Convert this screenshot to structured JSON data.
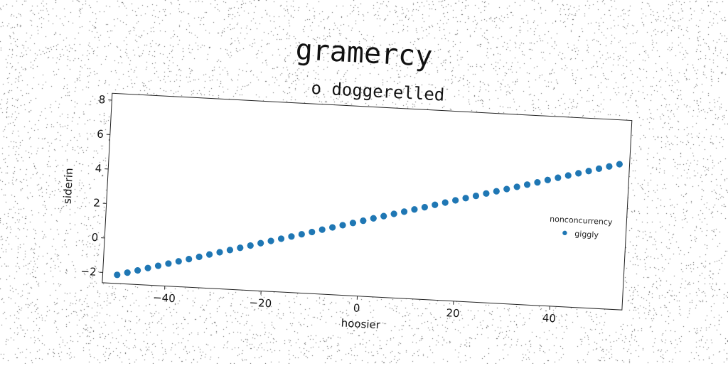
{
  "figure": {
    "suptitle": "gramercy",
    "title": "o doggerelled"
  },
  "chart_data": {
    "type": "scatter",
    "title": "o doggerelled",
    "suptitle": "gramercy",
    "xlabel": "hoosier",
    "ylabel": "siderin",
    "xlim": [
      -53,
      55
    ],
    "ylim": [
      -2.6,
      8.4
    ],
    "xticks": [
      -40,
      -20,
      0,
      20,
      40
    ],
    "xtick_labels": [
      "−40",
      "−20",
      "0",
      "20",
      "40"
    ],
    "yticks": [
      -2,
      0,
      2,
      4,
      6,
      8
    ],
    "ytick_labels": [
      "−2",
      "0",
      "2",
      "4",
      "6",
      "8"
    ],
    "grid": false,
    "legend": {
      "title": "nonconcurrency",
      "placement": "right"
    },
    "series": [
      {
        "name": "giggly",
        "color": "#1f77b4",
        "x_start": -50,
        "x_end": 53,
        "points": 50,
        "x": [
          -50,
          -47.9,
          -45.8,
          -43.7,
          -41.6,
          -39.5,
          -37.4,
          -35.3,
          -33.2,
          -31.1,
          -29.0,
          -26.9,
          -24.8,
          -22.7,
          -20.6,
          -18.5,
          -16.4,
          -14.3,
          -12.2,
          -10.1,
          -8.0,
          -5.9,
          -3.8,
          -1.7,
          0.4,
          2.5,
          4.6,
          6.7,
          8.8,
          10.9,
          13.0,
          15.1,
          17.2,
          19.3,
          21.4,
          23.5,
          25.6,
          27.7,
          29.8,
          31.9,
          34.0,
          36.1,
          38.2,
          40.3,
          42.4,
          44.5,
          46.6,
          48.7,
          50.8,
          52.9
        ],
        "y": [
          -2.1,
          -1.94,
          -1.78,
          -1.61,
          -1.45,
          -1.29,
          -1.13,
          -0.97,
          -0.81,
          -0.64,
          -0.48,
          -0.32,
          -0.16,
          0.0,
          0.17,
          0.33,
          0.49,
          0.65,
          0.81,
          0.97,
          1.14,
          1.3,
          1.46,
          1.62,
          1.78,
          1.95,
          2.11,
          2.27,
          2.43,
          2.59,
          2.75,
          2.92,
          3.08,
          3.24,
          3.4,
          3.56,
          3.73,
          3.89,
          4.05,
          4.21,
          4.37,
          4.53,
          4.7,
          4.86,
          5.02,
          5.18,
          5.34,
          5.51,
          5.67,
          5.83
        ]
      }
    ]
  }
}
